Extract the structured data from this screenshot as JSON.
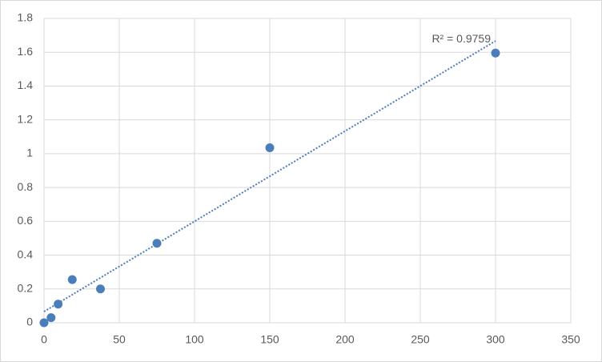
{
  "chart_data": {
    "type": "scatter",
    "series": [
      {
        "color": "#4a7ebb",
        "x": [
          0,
          4.6875,
          9.375,
          18.75,
          37.5,
          75,
          150,
          300
        ],
        "values": [
          0,
          0.03,
          0.11,
          0.255,
          0.2,
          0.47,
          1.035,
          1.595
        ]
      }
    ],
    "trendline": {
      "x": [
        0,
        300
      ],
      "values": [
        0.066,
        1.667
      ],
      "color": "#4a7ebb",
      "label": "R² = 0.9759"
    },
    "xlim": [
      0,
      350
    ],
    "xticks": [
      0,
      50,
      100,
      150,
      200,
      250,
      300,
      350
    ],
    "ylim": [
      0,
      1.8
    ],
    "yticks": [
      0,
      0.2,
      0.4,
      0.6,
      0.8,
      1,
      1.2,
      1.4,
      1.6,
      1.8
    ],
    "grid": true
  }
}
